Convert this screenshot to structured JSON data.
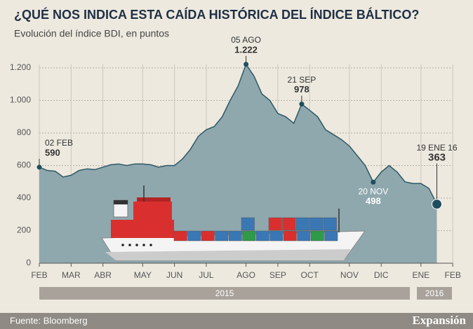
{
  "chart_data": {
    "type": "area",
    "title": "¿QUÉ NOS INDICA ESTA CAÍDA HISTÓRICA DEL ÍNDICE BÁLTICO?",
    "subtitle": "Evolución del índice BDI, en puntos",
    "categories": [
      null,
      null,
      null,
      null,
      "MAR",
      null,
      null,
      null,
      "ABR",
      null,
      null,
      null,
      null,
      "MAY",
      null,
      null,
      null,
      "JUN",
      null,
      null,
      null,
      "JUL",
      null,
      null,
      null,
      null,
      "AGO",
      null,
      null,
      null,
      "SEP",
      null,
      null,
      null,
      "OCT",
      null,
      null,
      null,
      null,
      "NOV",
      null,
      null,
      null,
      "DIC",
      null,
      null,
      null,
      null,
      "ENE",
      null,
      null,
      null,
      "FEB"
    ],
    "first_category": "FEB",
    "values": [
      590,
      570,
      565,
      530,
      540,
      570,
      580,
      575,
      590,
      605,
      610,
      600,
      610,
      610,
      605,
      590,
      600,
      600,
      640,
      700,
      780,
      820,
      840,
      900,
      1000,
      1090,
      1222,
      1150,
      1040,
      1000,
      920,
      900,
      860,
      978,
      940,
      900,
      820,
      790,
      760,
      720,
      660,
      600,
      498,
      560,
      600,
      560,
      500,
      490,
      490,
      460,
      363,
      null,
      null
    ],
    "value_labels": [
      "590",
      null,
      null,
      null,
      null,
      null,
      null,
      null,
      null,
      null,
      null,
      null,
      null,
      null,
      null,
      null,
      null,
      null,
      null,
      null,
      null,
      null,
      null,
      null,
      null,
      null,
      "1.222",
      null,
      null,
      null,
      null,
      null,
      null,
      "978",
      null,
      null,
      null,
      null,
      null,
      null,
      null,
      null,
      "498",
      null,
      null,
      null,
      null,
      null,
      null,
      null,
      "363",
      null,
      null
    ],
    "date_labels": [
      "02 FEB",
      null,
      null,
      null,
      null,
      null,
      null,
      null,
      null,
      null,
      null,
      null,
      null,
      null,
      null,
      null,
      null,
      null,
      null,
      null,
      null,
      null,
      null,
      null,
      null,
      null,
      "05 AGO",
      null,
      null,
      null,
      null,
      null,
      null,
      "21 SEP",
      null,
      null,
      null,
      null,
      null,
      null,
      null,
      null,
      "20 NOV",
      null,
      null,
      null,
      null,
      null,
      null,
      null,
      "19 ENE 16",
      null,
      null
    ],
    "color": "#8fa8ae",
    "line_color": "#2f5866",
    "ylim": [
      0,
      1200
    ],
    "yticks": [
      0,
      200,
      400,
      600,
      800,
      {
        "value": 1000,
        "label": "1.000"
      },
      {
        "value": 1200,
        "label": "1.200"
      }
    ],
    "grid": true,
    "year_labels": [
      "2015",
      "2016"
    ],
    "source": "Fuente: Bloomberg",
    "brand": "Expansión"
  }
}
